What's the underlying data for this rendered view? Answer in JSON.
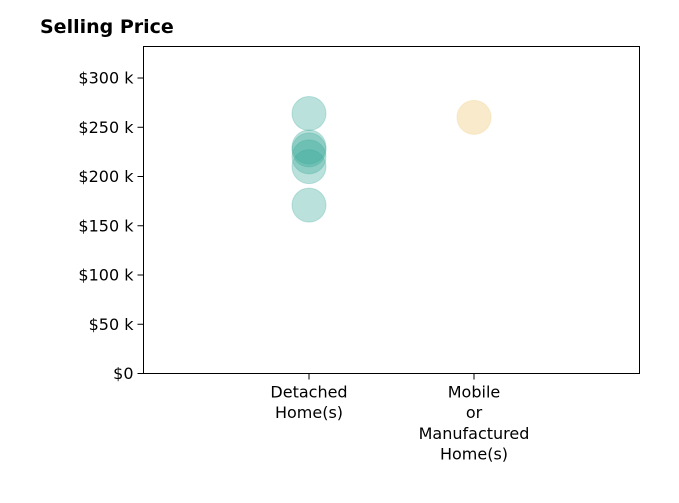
{
  "chart_data": {
    "type": "scatter",
    "title": "Selling Price",
    "xlabel": "",
    "ylabel": "",
    "categories": [
      [
        "Detached",
        "Home(s)"
      ],
      [
        "Mobile",
        "or",
        "Manufactured",
        "Home(s)"
      ]
    ],
    "ylim": [
      0,
      332000
    ],
    "yticks": [
      {
        "value": 0,
        "label": "$0"
      },
      {
        "value": 50000,
        "label": "$50 k"
      },
      {
        "value": 100000,
        "label": "$100 k"
      },
      {
        "value": 150000,
        "label": "$150 k"
      },
      {
        "value": 200000,
        "label": "$200 k"
      },
      {
        "value": 250000,
        "label": "$250 k"
      },
      {
        "value": 300000,
        "label": "$300 k"
      }
    ],
    "grid": false,
    "series": [
      {
        "category_index": 0,
        "color": "#3aaa99",
        "opacity": 0.35,
        "values": [
          264000,
          230000,
          227000,
          220000,
          210000,
          171000
        ]
      },
      {
        "category_index": 1,
        "color": "#f3dca7",
        "opacity": 0.6,
        "values": [
          260000
        ]
      }
    ]
  }
}
